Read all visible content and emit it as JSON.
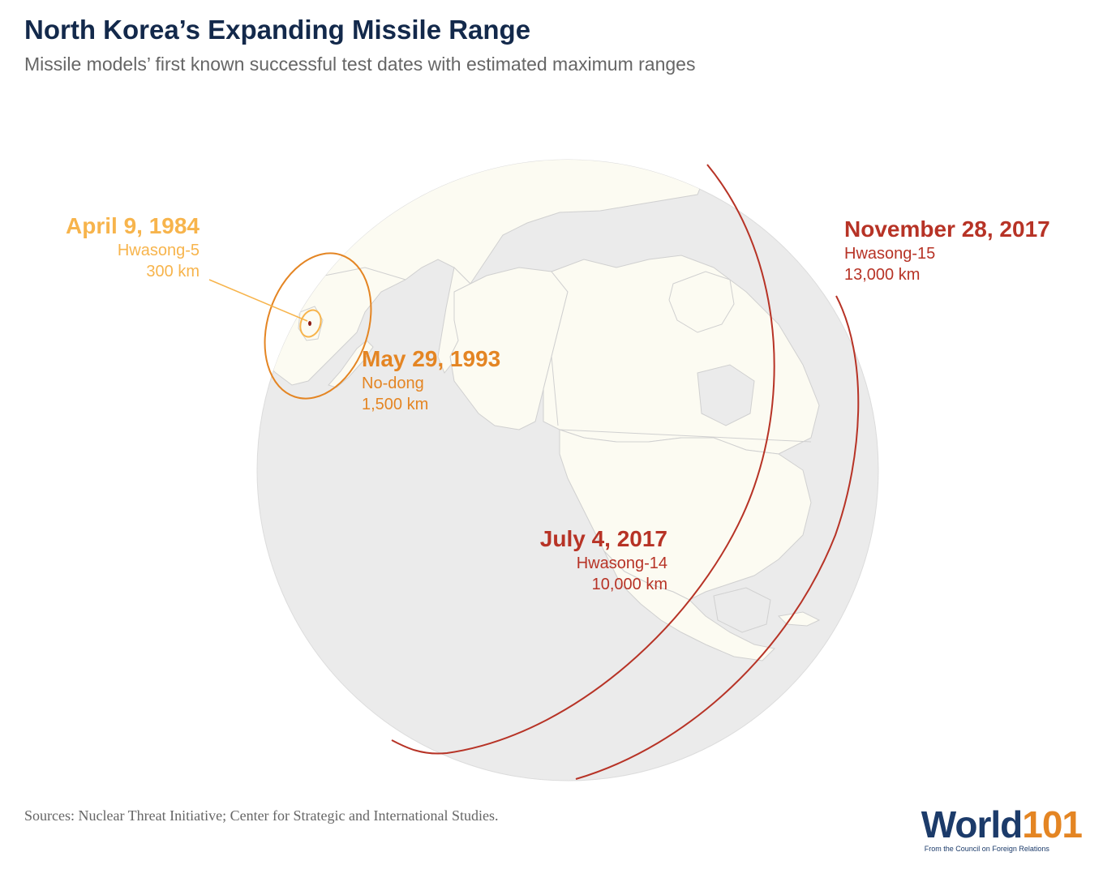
{
  "title": "North Korea’s Expanding Missile Range",
  "subtitle": "Missile models’ first known successful test dates with estimated maximum ranges",
  "missiles": [
    {
      "date": "April 9, 1984",
      "model": "Hwasong-5",
      "range": "300 km",
      "color": "#f7b44c"
    },
    {
      "date": "May 29, 1993",
      "model": "No-dong",
      "range": "1,500 km",
      "color": "#e48523"
    },
    {
      "date": "July 4, 2017",
      "model": "Hwasong-14",
      "range": "10,000 km",
      "color": "#b73326"
    },
    {
      "date": "November 28, 2017",
      "model": "Hwasong-15",
      "range": "13,000 km",
      "color": "#b73326"
    }
  ],
  "colors": {
    "globe": "#ebebeb",
    "land": "#fcfbf2",
    "borders": "#d0d0d0",
    "origin": "#8b1a12"
  },
  "sources": "Sources: Nuclear Threat Initiative; Center for Strategic and International Studies.",
  "logo": {
    "world": "World",
    "number": "101",
    "tagline": "From the Council on Foreign Relations"
  }
}
